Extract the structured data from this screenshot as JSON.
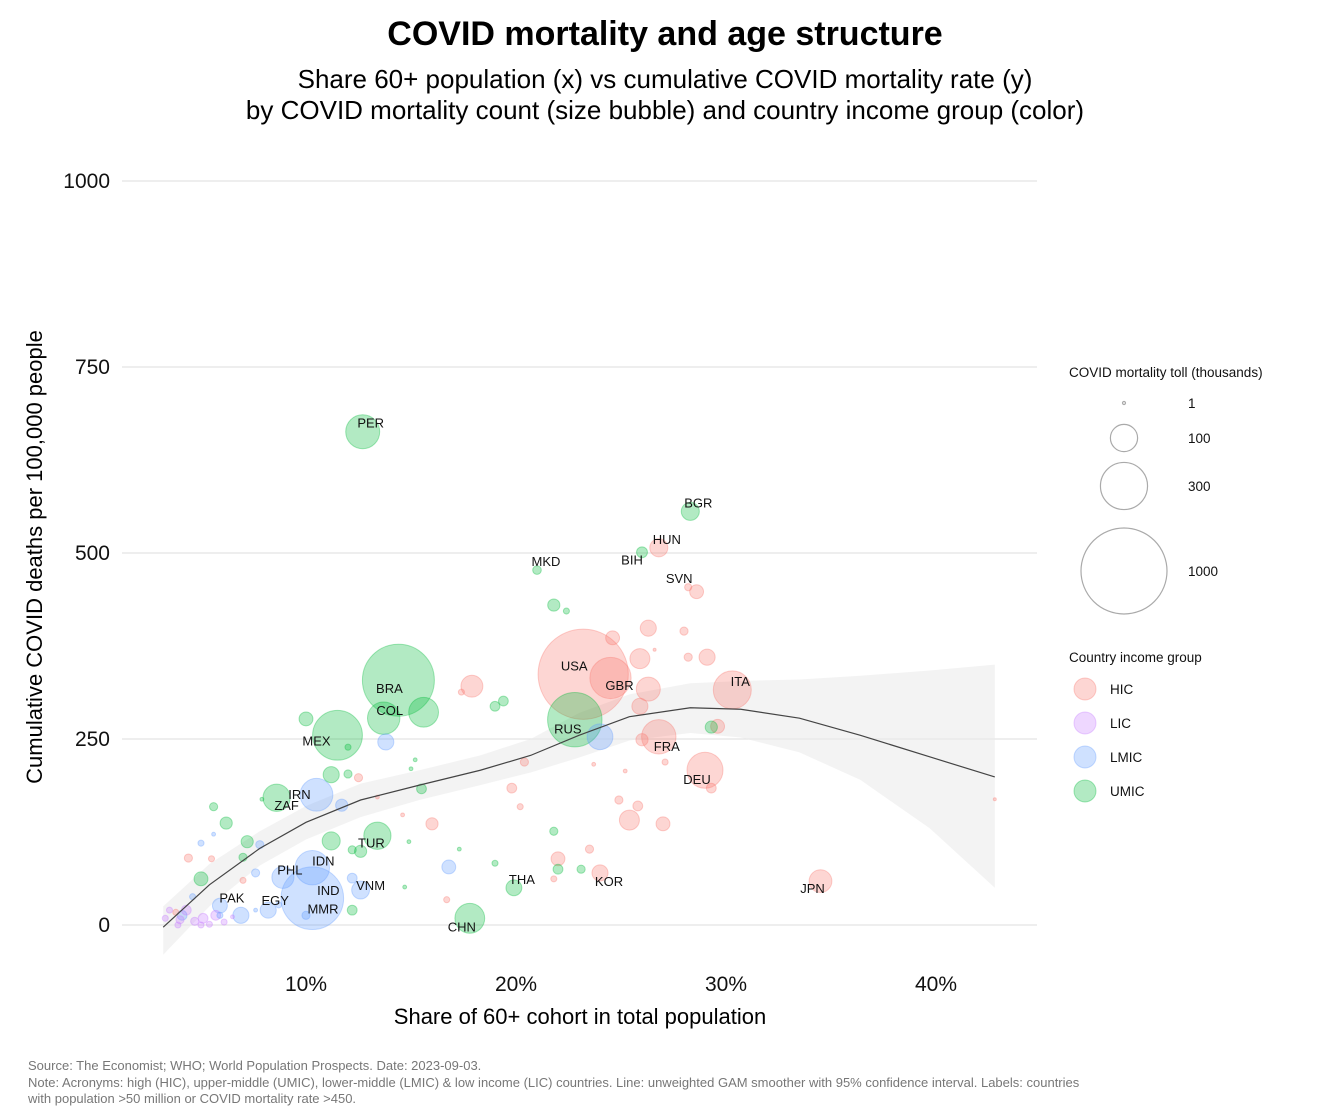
{
  "title": "COVID mortality and age structure",
  "subtitle_line1": "Share 60+ population (x) vs cumulative COVID mortality rate (y)",
  "subtitle_line2": "by COVID mortality count (size bubble) and country income group (color)",
  "footer": {
    "source": "Source: The Economist; WHO; World Population Prospects. Date: 2023-09-03.",
    "note1": "Note: Acronyms: high (HIC), upper-middle (UMIC), lower-middle (LMIC) & low income (LIC) countries. Line: unweighted GAM smoother with 95% confidence interval. Labels: countries",
    "note2": "with population >50 million or COVID mortality rate >450."
  },
  "chart_data": {
    "type": "scatter",
    "xlabel": "Share of 60+ cohort in total population",
    "ylabel": "Cumulative COVID deaths per 100,000 people",
    "xlim": [
      2.5,
      46
    ],
    "ylim": [
      -55,
      1000
    ],
    "x_ticks": [
      10,
      20,
      30,
      40
    ],
    "x_tick_labels": [
      "10%",
      "20%",
      "30%",
      "40%"
    ],
    "y_ticks": [
      0,
      250,
      500,
      750,
      1000
    ],
    "y_tick_labels": [
      "0",
      "250",
      "500",
      "750",
      "1000"
    ],
    "grid": "horizontal major",
    "legend_position": "right",
    "size_legend": {
      "title": "COVID mortality toll (thousands)",
      "values": [
        1,
        100,
        300,
        1000
      ],
      "labels": [
        "1",
        "100",
        "300",
        "1000"
      ]
    },
    "color_legend": {
      "title": "Country income group",
      "groups": [
        "HIC",
        "LIC",
        "LMIC",
        "UMIC"
      ]
    },
    "colors": {
      "HIC": "#F8766D",
      "LIC": "#C77CFF",
      "LMIC": "#619CFF",
      "UMIC": "#00BA38"
    },
    "points": [
      {
        "label": "PER",
        "group": "UMIC",
        "x": 12.7,
        "y": 663,
        "size": 156
      },
      {
        "label": "BGR",
        "group": "UMIC",
        "x": 28.3,
        "y": 556,
        "size": 44
      },
      {
        "label": "HUN",
        "group": "HIC",
        "x": 26.8,
        "y": 507,
        "size": 44
      },
      {
        "label": "BIH",
        "group": "UMIC",
        "x": 26.0,
        "y": 501,
        "size": 16
      },
      {
        "label": "MKD",
        "group": "UMIC",
        "x": 21.0,
        "y": 477,
        "size": 10
      },
      {
        "label": "SVN",
        "group": "HIC",
        "x": 28.2,
        "y": 454,
        "size": 7
      },
      {
        "label": "USA",
        "group": "HIC",
        "x": 23.2,
        "y": 337,
        "size": 1100
      },
      {
        "label": "GBR",
        "group": "HIC",
        "x": 24.5,
        "y": 332,
        "size": 230
      },
      {
        "label": "ITA",
        "group": "HIC",
        "x": 30.3,
        "y": 316,
        "size": 195
      },
      {
        "label": "RUS",
        "group": "UMIC",
        "x": 22.8,
        "y": 276,
        "size": 400
      },
      {
        "label": "FRA",
        "group": "HIC",
        "x": 26.8,
        "y": 253,
        "size": 160
      },
      {
        "label": "DEU",
        "group": "HIC",
        "x": 29.0,
        "y": 208,
        "size": 175
      },
      {
        "label": "JPN",
        "group": "HIC",
        "x": 34.5,
        "y": 59,
        "size": 70
      },
      {
        "label": "KOR",
        "group": "HIC",
        "x": 24.0,
        "y": 70,
        "size": 35
      },
      {
        "label": "THA",
        "group": "UMIC",
        "x": 19.9,
        "y": 50,
        "size": 34
      },
      {
        "label": "CHN",
        "group": "UMIC",
        "x": 17.8,
        "y": 9,
        "size": 120
      },
      {
        "label": "BRA",
        "group": "UMIC",
        "x": 14.4,
        "y": 329,
        "size": 700
      },
      {
        "label": "COL",
        "group": "UMIC",
        "x": 13.7,
        "y": 278,
        "size": 142
      },
      {
        "label": "MEX",
        "group": "UMIC",
        "x": 11.5,
        "y": 255,
        "size": 335
      },
      {
        "label": "IRN",
        "group": "LMIC",
        "x": 10.5,
        "y": 175,
        "size": 145
      },
      {
        "label": "ZAF",
        "group": "UMIC",
        "x": 8.6,
        "y": 171,
        "size": 100
      },
      {
        "label": "TUR",
        "group": "UMIC",
        "x": 13.4,
        "y": 120,
        "size": 100
      },
      {
        "label": "PHL",
        "group": "LMIC",
        "x": 8.9,
        "y": 64,
        "size": 66
      },
      {
        "label": "IDN",
        "group": "LMIC",
        "x": 10.3,
        "y": 77,
        "size": 160
      },
      {
        "label": "IND",
        "group": "LMIC",
        "x": 10.3,
        "y": 36,
        "size": 530
      },
      {
        "label": "MMR",
        "group": "LMIC",
        "x": 10.0,
        "y": 13,
        "size": 9
      },
      {
        "label": "VNM",
        "group": "LMIC",
        "x": 12.6,
        "y": 47,
        "size": 43
      },
      {
        "label": "PAK",
        "group": "LMIC",
        "x": 5.9,
        "y": 26,
        "size": 30
      },
      {
        "label": "EGY",
        "group": "LMIC",
        "x": 8.2,
        "y": 20,
        "size": 35
      },
      {
        "group": "HIC",
        "x": 28.6,
        "y": 448,
        "size": 26
      },
      {
        "group": "HIC",
        "x": 24.6,
        "y": 386,
        "size": 26
      },
      {
        "group": "HIC",
        "x": 26.3,
        "y": 399,
        "size": 35
      },
      {
        "group": "HIC",
        "x": 28.0,
        "y": 395,
        "size": 9
      },
      {
        "group": "HIC",
        "x": 25.9,
        "y": 358,
        "size": 54
      },
      {
        "group": "HIC",
        "x": 28.2,
        "y": 360,
        "size": 9
      },
      {
        "group": "HIC",
        "x": 29.1,
        "y": 360,
        "size": 35
      },
      {
        "group": "HIC",
        "x": 26.3,
        "y": 317,
        "size": 78
      },
      {
        "group": "HIC",
        "x": 25.9,
        "y": 294,
        "size": 35
      },
      {
        "group": "HIC",
        "x": 29.6,
        "y": 267,
        "size": 26
      },
      {
        "group": "HIC",
        "x": 17.9,
        "y": 321,
        "size": 65
      },
      {
        "group": "HIC",
        "x": 17.4,
        "y": 313,
        "size": 5
      },
      {
        "group": "HIC",
        "x": 26.0,
        "y": 249,
        "size": 20
      },
      {
        "group": "HIC",
        "x": 27.1,
        "y": 219,
        "size": 5
      },
      {
        "group": "HIC",
        "x": 20.4,
        "y": 219,
        "size": 9
      },
      {
        "group": "HIC",
        "x": 12.5,
        "y": 198,
        "size": 9
      },
      {
        "group": "HIC",
        "x": 19.8,
        "y": 184,
        "size": 13
      },
      {
        "group": "HIC",
        "x": 29.3,
        "y": 184,
        "size": 13
      },
      {
        "group": "HIC",
        "x": 24.9,
        "y": 168,
        "size": 9
      },
      {
        "group": "HIC",
        "x": 20.2,
        "y": 159,
        "size": 5
      },
      {
        "group": "HIC",
        "x": 25.8,
        "y": 160,
        "size": 13
      },
      {
        "group": "HIC",
        "x": 25.4,
        "y": 141,
        "size": 54
      },
      {
        "group": "HIC",
        "x": 27.0,
        "y": 136,
        "size": 26
      },
      {
        "group": "HIC",
        "x": 16.0,
        "y": 136,
        "size": 20
      },
      {
        "group": "HIC",
        "x": 22.0,
        "y": 89,
        "size": 26
      },
      {
        "group": "HIC",
        "x": 23.5,
        "y": 102,
        "size": 9
      },
      {
        "group": "HIC",
        "x": 21.8,
        "y": 62,
        "size": 5
      },
      {
        "group": "HIC",
        "x": 16.7,
        "y": 34,
        "size": 5
      },
      {
        "group": "HIC",
        "x": 4.4,
        "y": 90,
        "size": 9
      },
      {
        "group": "HIC",
        "x": 5.5,
        "y": 89,
        "size": 5
      },
      {
        "group": "HIC",
        "x": 7.0,
        "y": 60,
        "size": 5
      },
      {
        "group": "HIC",
        "x": 13.4,
        "y": 172,
        "size": 2
      },
      {
        "group": "HIC",
        "x": 14.6,
        "y": 148,
        "size": 2
      },
      {
        "group": "HIC",
        "x": 23.7,
        "y": 216,
        "size": 2
      },
      {
        "group": "HIC",
        "x": 25.2,
        "y": 207,
        "size": 2
      },
      {
        "group": "HIC",
        "x": 26.6,
        "y": 370,
        "size": 1
      },
      {
        "group": "HIC",
        "x": 3.8,
        "y": 17,
        "size": 5
      },
      {
        "group": "HIC",
        "x": 42.8,
        "y": 169,
        "size": 1
      },
      {
        "group": "LMIC",
        "x": 13.8,
        "y": 246,
        "size": 35
      },
      {
        "group": "LMIC",
        "x": 24.0,
        "y": 253,
        "size": 90
      },
      {
        "group": "LMIC",
        "x": 11.7,
        "y": 161,
        "size": 20
      },
      {
        "group": "LMIC",
        "x": 16.8,
        "y": 78,
        "size": 26
      },
      {
        "group": "LMIC",
        "x": 12.2,
        "y": 63,
        "size": 13
      },
      {
        "group": "LMIC",
        "x": 7.6,
        "y": 70,
        "size": 9
      },
      {
        "group": "LMIC",
        "x": 6.9,
        "y": 13,
        "size": 35
      },
      {
        "group": "LMIC",
        "x": 5.0,
        "y": 110,
        "size": 5
      },
      {
        "group": "LMIC",
        "x": 5.6,
        "y": 122,
        "size": 2
      },
      {
        "group": "LMIC",
        "x": 7.8,
        "y": 108,
        "size": 9
      },
      {
        "group": "LMIC",
        "x": 4.6,
        "y": 38,
        "size": 5
      },
      {
        "group": "LMIC",
        "x": 8.7,
        "y": 27,
        "size": 5
      },
      {
        "group": "LMIC",
        "x": 7.6,
        "y": 20,
        "size": 2
      },
      {
        "group": "LMIC",
        "x": 5.9,
        "y": 13,
        "size": 5
      },
      {
        "group": "LMIC",
        "x": 4.1,
        "y": 13,
        "size": 13
      },
      {
        "group": "LIC",
        "x": 3.3,
        "y": 9,
        "size": 5
      },
      {
        "group": "LIC",
        "x": 3.5,
        "y": 20,
        "size": 5
      },
      {
        "group": "LIC",
        "x": 4.0,
        "y": 7,
        "size": 9
      },
      {
        "group": "LIC",
        "x": 4.3,
        "y": 20,
        "size": 13
      },
      {
        "group": "LIC",
        "x": 4.7,
        "y": 5,
        "size": 9
      },
      {
        "group": "LIC",
        "x": 5.1,
        "y": 9,
        "size": 13
      },
      {
        "group": "LIC",
        "x": 5.4,
        "y": 1,
        "size": 5
      },
      {
        "group": "LIC",
        "x": 5.7,
        "y": 13,
        "size": 13
      },
      {
        "group": "LIC",
        "x": 6.1,
        "y": 4,
        "size": 5
      },
      {
        "group": "LIC",
        "x": 3.9,
        "y": 0,
        "size": 5
      },
      {
        "group": "LIC",
        "x": 5.0,
        "y": 0,
        "size": 5
      },
      {
        "group": "LIC",
        "x": 6.5,
        "y": 11,
        "size": 2
      },
      {
        "group": "UMIC",
        "x": 21.8,
        "y": 430,
        "size": 20
      },
      {
        "group": "UMIC",
        "x": 22.4,
        "y": 422,
        "size": 5
      },
      {
        "group": "UMIC",
        "x": 10.0,
        "y": 277,
        "size": 26
      },
      {
        "group": "UMIC",
        "x": 12.0,
        "y": 239,
        "size": 5
      },
      {
        "group": "UMIC",
        "x": 15.6,
        "y": 286,
        "size": 120
      },
      {
        "group": "UMIC",
        "x": 19.4,
        "y": 301,
        "size": 13
      },
      {
        "group": "UMIC",
        "x": 19.0,
        "y": 294,
        "size": 13
      },
      {
        "group": "UMIC",
        "x": 29.3,
        "y": 266,
        "size": 20
      },
      {
        "group": "UMIC",
        "x": 11.2,
        "y": 202,
        "size": 35
      },
      {
        "group": "UMIC",
        "x": 12.0,
        "y": 203,
        "size": 9
      },
      {
        "group": "UMIC",
        "x": 7.9,
        "y": 169,
        "size": 2
      },
      {
        "group": "UMIC",
        "x": 5.6,
        "y": 159,
        "size": 9
      },
      {
        "group": "UMIC",
        "x": 6.2,
        "y": 137,
        "size": 20
      },
      {
        "group": "UMIC",
        "x": 7.2,
        "y": 112,
        "size": 20
      },
      {
        "group": "UMIC",
        "x": 7.0,
        "y": 91,
        "size": 9
      },
      {
        "group": "UMIC",
        "x": 11.2,
        "y": 113,
        "size": 44
      },
      {
        "group": "UMIC",
        "x": 12.2,
        "y": 101,
        "size": 9
      },
      {
        "group": "UMIC",
        "x": 12.6,
        "y": 99,
        "size": 20
      },
      {
        "group": "UMIC",
        "x": 15.5,
        "y": 183,
        "size": 13
      },
      {
        "group": "UMIC",
        "x": 15.2,
        "y": 222,
        "size": 2
      },
      {
        "group": "UMIC",
        "x": 15.0,
        "y": 210,
        "size": 2
      },
      {
        "group": "UMIC",
        "x": 21.8,
        "y": 126,
        "size": 9
      },
      {
        "group": "UMIC",
        "x": 22.0,
        "y": 75,
        "size": 13
      },
      {
        "group": "UMIC",
        "x": 23.1,
        "y": 75,
        "size": 9
      },
      {
        "group": "UMIC",
        "x": 19.0,
        "y": 83,
        "size": 5
      },
      {
        "group": "UMIC",
        "x": 17.3,
        "y": 102,
        "size": 2
      },
      {
        "group": "UMIC",
        "x": 5.0,
        "y": 62,
        "size": 26
      },
      {
        "group": "UMIC",
        "x": 12.2,
        "y": 20,
        "size": 13
      },
      {
        "group": "UMIC",
        "x": 14.7,
        "y": 51,
        "size": 2
      },
      {
        "group": "UMIC",
        "x": 14.9,
        "y": 112,
        "size": 2
      }
    ],
    "smoother": {
      "x": [
        3.2,
        5.4,
        7.8,
        10.0,
        12.6,
        15.4,
        18.3,
        20.7,
        23.0,
        25.4,
        28.3,
        30.7,
        33.5,
        36.4,
        39.7,
        42.8
      ],
      "y": [
        -3,
        54,
        103,
        138,
        168,
        188,
        208,
        228,
        255,
        280,
        292,
        290,
        278,
        255,
        226,
        199
      ],
      "lower": [
        -40,
        25,
        80,
        115,
        145,
        168,
        188,
        205,
        225,
        248,
        258,
        252,
        232,
        195,
        130,
        50
      ],
      "upper": [
        25,
        82,
        126,
        160,
        190,
        208,
        228,
        250,
        285,
        310,
        325,
        328,
        330,
        335,
        342,
        350
      ]
    }
  }
}
